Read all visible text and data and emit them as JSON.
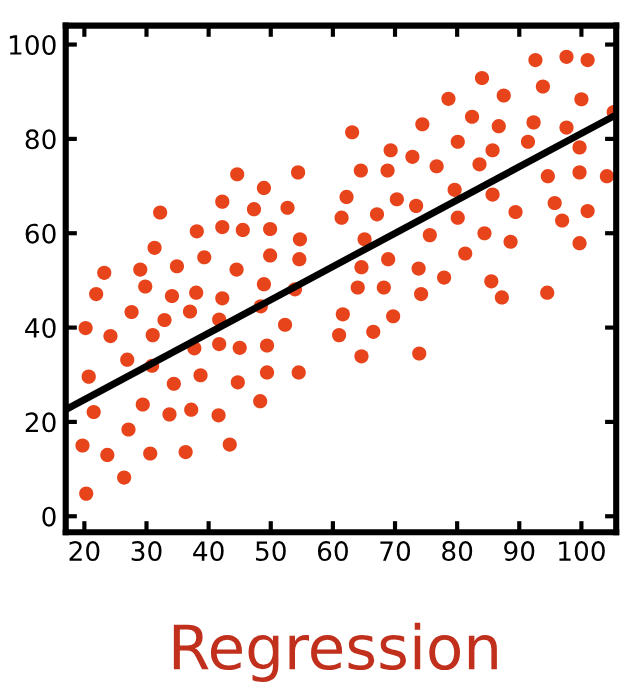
{
  "chart_data": {
    "type": "scatter",
    "title": "Regression",
    "xlim": [
      17,
      105.6
    ],
    "ylim": [
      -3.4,
      104
    ],
    "xticks": [
      20,
      30,
      40,
      50,
      60,
      70,
      80,
      90,
      100
    ],
    "yticks": [
      0,
      20,
      40,
      60,
      80,
      100
    ],
    "grid": false,
    "marker": "circle",
    "series": [
      {
        "color": "#e8441c",
        "x": [
          20.2,
          20.7,
          21.5,
          19.7,
          20.3,
          21.9,
          23.2,
          24.2,
          23.7,
          26.9,
          27.6,
          27.1,
          26.4,
          29.0,
          29.8,
          29.4,
          31.3,
          32.2,
          31.0,
          30.9,
          30.6,
          32.9,
          34.1,
          34.9,
          34.4,
          33.7,
          36.3,
          37.0,
          37.7,
          38.0,
          38.1,
          38.7,
          37.2,
          39.3,
          42.2,
          42.2,
          42.2,
          41.7,
          41.7,
          41.6,
          43.4,
          44.6,
          45.5,
          44.5,
          45.0,
          44.7,
          47.3,
          48.9,
          48.9,
          49.9,
          49.9,
          49.4,
          48.4,
          49.4,
          48.3,
          52.3,
          52.7,
          54.4,
          54.7,
          54.6,
          53.9,
          54.5,
          61.0,
          61.4,
          61.6,
          62.2,
          63.1,
          64.0,
          64.6,
          64.6,
          64.5,
          65.1,
          66.5,
          67.1,
          68.2,
          68.9,
          68.8,
          69.3,
          69.7,
          70.3,
          72.8,
          73.4,
          73.8,
          74.2,
          74.4,
          73.9,
          75.6,
          76.7,
          77.9,
          78.6,
          79.6,
          80.1,
          80.1,
          81.3,
          82.4,
          83.6,
          84.4,
          84.0,
          85.7,
          85.7,
          85.5,
          86.7,
          87.2,
          87.5,
          88.6,
          89.4,
          91.4,
          92.3,
          92.6,
          93.8,
          94.6,
          94.5,
          95.7,
          96.9,
          97.6,
          97.6,
          99.7,
          99.7,
          100.0,
          101.0,
          101.0,
          99.7,
          104.1,
          105.2
        ],
        "values": [
          39.9,
          29.6,
          22.1,
          15.0,
          4.8,
          47.1,
          51.6,
          38.2,
          13.0,
          33.2,
          43.3,
          18.4,
          8.2,
          52.3,
          48.7,
          23.7,
          56.9,
          64.4,
          38.4,
          31.9,
          13.3,
          41.6,
          46.7,
          53.0,
          28.1,
          21.6,
          13.6,
          43.4,
          35.6,
          47.4,
          60.4,
          29.9,
          22.6,
          54.9,
          66.7,
          61.3,
          46.2,
          41.7,
          36.5,
          21.4,
          15.2,
          72.5,
          60.7,
          52.3,
          35.7,
          28.4,
          65.1,
          69.6,
          49.2,
          60.9,
          55.3,
          36.2,
          44.5,
          30.5,
          24.4,
          40.6,
          65.4,
          72.9,
          58.7,
          54.5,
          48.1,
          30.5,
          38.4,
          63.3,
          42.8,
          67.7,
          81.4,
          48.5,
          52.8,
          33.9,
          73.3,
          58.7,
          39.1,
          64.0,
          48.5,
          54.5,
          73.3,
          77.6,
          42.4,
          67.2,
          76.2,
          65.8,
          52.5,
          47.1,
          83.1,
          34.5,
          59.6,
          74.2,
          50.6,
          88.5,
          69.2,
          79.4,
          63.3,
          55.7,
          84.7,
          74.6,
          60.0,
          92.9,
          77.6,
          68.2,
          49.8,
          82.7,
          46.4,
          89.2,
          58.2,
          64.5,
          79.4,
          83.5,
          96.7,
          91.1,
          72.1,
          47.4,
          66.4,
          62.7,
          97.4,
          82.4,
          78.2,
          72.9,
          88.4,
          96.7,
          64.7,
          57.9,
          72.1,
          85.7
        ]
      },
      {
        "type": "line",
        "color": "#000000",
        "line_style": "solid",
        "marker": "none",
        "x": [
          17,
          105.6
        ],
        "values": [
          22.6,
          85.1
        ]
      }
    ]
  }
}
